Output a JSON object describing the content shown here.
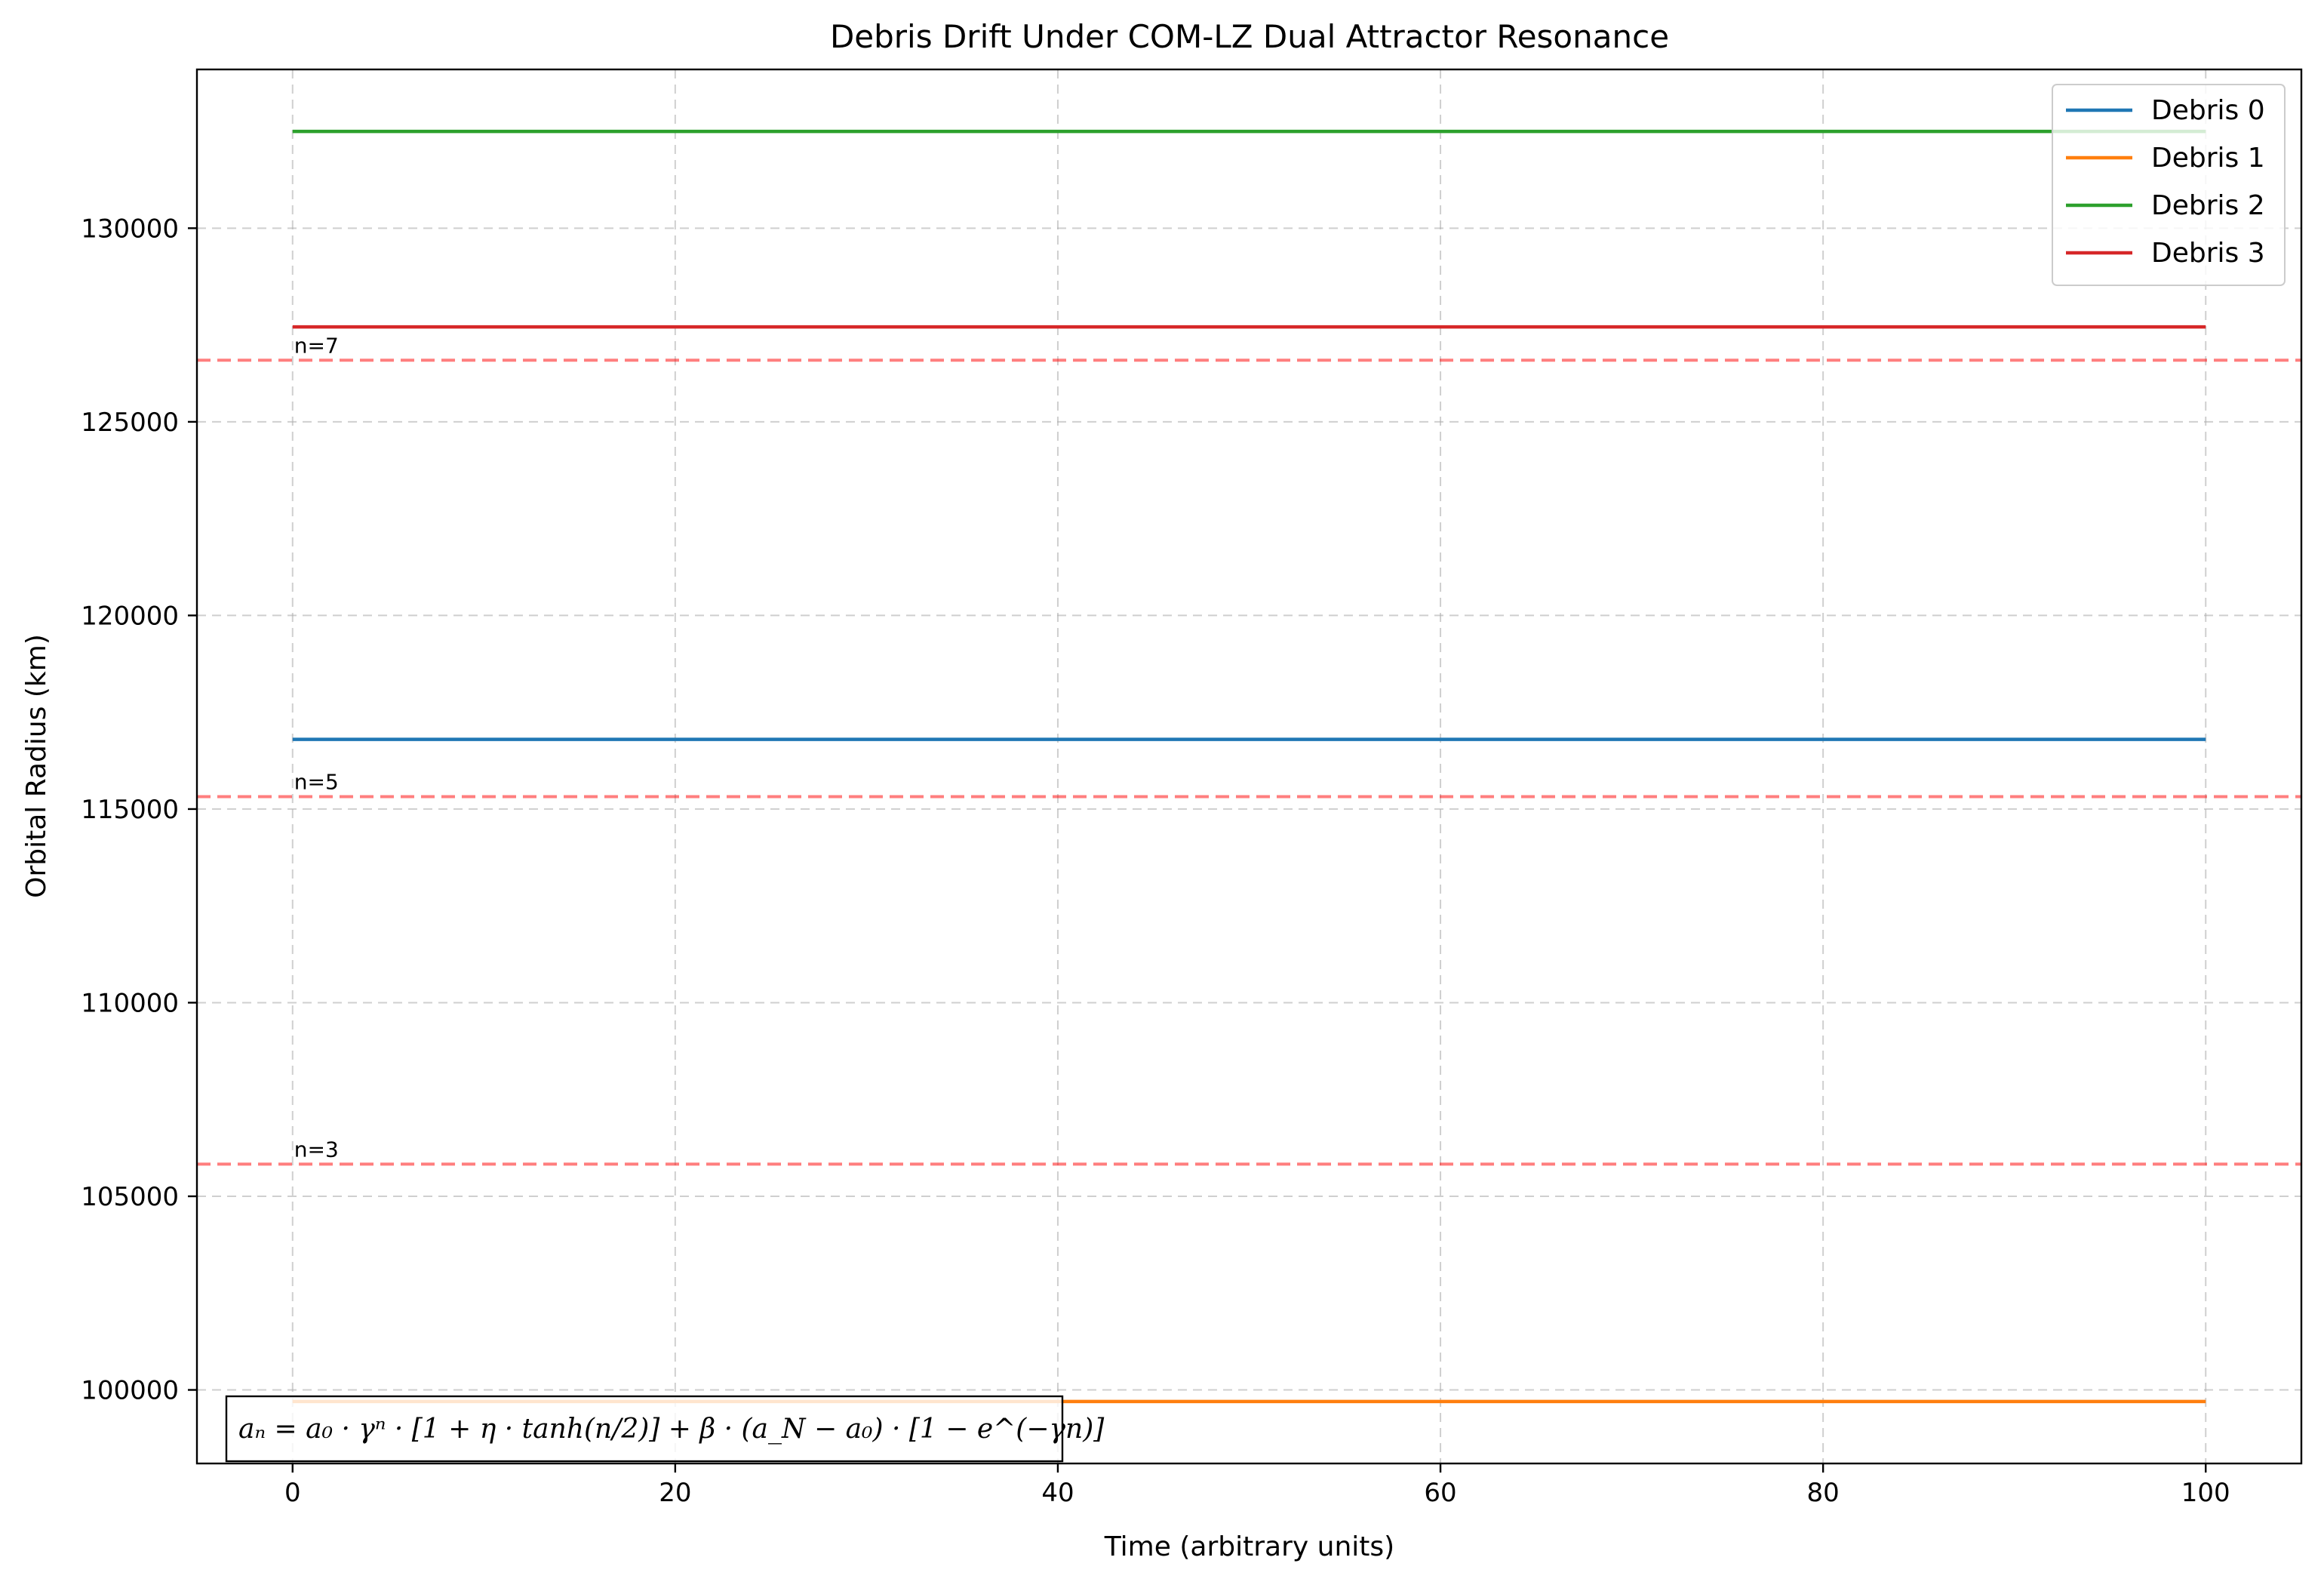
{
  "chart_data": {
    "type": "line",
    "title": "Debris Drift Under COM-LZ Dual Attractor Resonance",
    "xlabel": "Time (arbitrary units)",
    "ylabel": "Orbital Radius (km)",
    "xlim": [
      -5,
      105
    ],
    "ylim": [
      98100,
      134100
    ],
    "x_ticks": [
      0,
      20,
      40,
      60,
      80,
      100
    ],
    "y_ticks": [
      100000,
      105000,
      110000,
      115000,
      120000,
      125000,
      130000
    ],
    "grid": true,
    "legend_position": "top-right",
    "x": [
      0,
      100
    ],
    "series": [
      {
        "name": "Debris 0",
        "color": "#1f77b4",
        "values": [
          116800,
          116800
        ]
      },
      {
        "name": "Debris 1",
        "color": "#ff7f0e",
        "values": [
          99700,
          99700
        ]
      },
      {
        "name": "Debris 2",
        "color": "#2ca02c",
        "values": [
          132500,
          132500
        ]
      },
      {
        "name": "Debris 3",
        "color": "#d62728",
        "values": [
          127450,
          127450
        ]
      }
    ],
    "reference_lines": [
      {
        "label": "n=3",
        "y": 105830,
        "color": "#ff0000"
      },
      {
        "label": "n=5",
        "y": 115320,
        "color": "#ff0000"
      },
      {
        "label": "n=7",
        "y": 126590,
        "color": "#ff0000"
      }
    ],
    "annotation": {
      "text": "aₙ = a₀ · γⁿ · [1 + η · tanh(n/2)] + β · (a_N − a₀) · [1 − e^(−γn)]"
    }
  }
}
